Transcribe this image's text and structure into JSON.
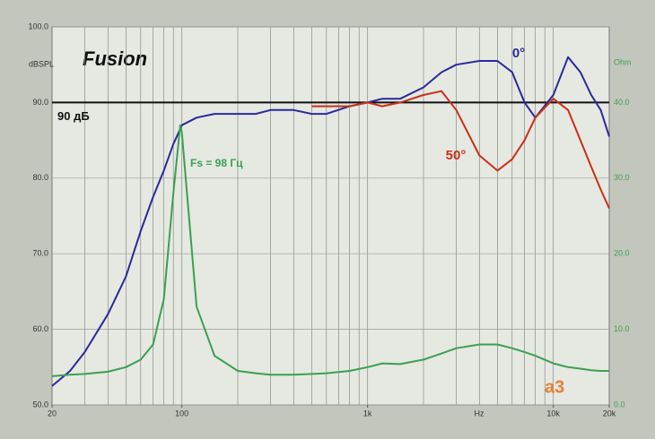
{
  "chart_data": {
    "type": "line",
    "title": "Fusion",
    "y_label": "dBSPL",
    "y2_label": "Ohm",
    "x_label": "Hz",
    "x_scale": "log",
    "grid": true,
    "xlim": [
      20,
      20000
    ],
    "ylim": [
      50,
      100
    ],
    "y2lim": [
      0,
      50
    ],
    "xticks": [
      20,
      100,
      {
        "value": 1000,
        "label": "1k"
      },
      {
        "value": 10000,
        "label": "10k"
      },
      {
        "value": 20000,
        "label": "20k"
      }
    ],
    "xgrid": [
      30,
      40,
      50,
      60,
      70,
      80,
      90,
      100,
      200,
      300,
      400,
      500,
      600,
      700,
      800,
      900,
      1000,
      2000,
      3000,
      4000,
      5000,
      6000,
      7000,
      8000,
      9000,
      10000
    ],
    "yticks": [
      {
        "value": 50,
        "label": "50.0"
      },
      {
        "value": 60,
        "label": "60.0"
      },
      {
        "value": 70,
        "label": "70.0"
      },
      {
        "value": 80,
        "label": "80.0"
      },
      {
        "value": 90,
        "label": "90.0"
      },
      {
        "value": 100,
        "label": "100.0"
      }
    ],
    "y2ticks": [
      {
        "value": 0,
        "label": "0.0"
      },
      {
        "value": 10,
        "label": "10.0"
      },
      {
        "value": 20,
        "label": "20.0"
      },
      {
        "value": 30,
        "label": "30.0"
      },
      {
        "value": 40,
        "label": "40.0"
      }
    ],
    "reference_line": {
      "value": 90,
      "label": "90 дБ",
      "color": "#111111"
    },
    "annotations": [
      "Fs = 98 Гц",
      "a3"
    ],
    "x": [
      20,
      25,
      30,
      40,
      50,
      60,
      70,
      80,
      90,
      98,
      100,
      120,
      150,
      200,
      250,
      300,
      400,
      500,
      600,
      800,
      1000,
      1200,
      1500,
      2000,
      2500,
      3000,
      4000,
      5000,
      6000,
      7000,
      8000,
      10000,
      12000,
      14000,
      16000,
      18000,
      20000
    ],
    "series": [
      {
        "name": "0°",
        "color": "#2a2a9a",
        "values": [
          52.5,
          54.5,
          57,
          62,
          67,
          73,
          77.5,
          81,
          84.5,
          86.5,
          87,
          88,
          88.5,
          88.5,
          88.5,
          89,
          89,
          88.5,
          88.5,
          89.5,
          90,
          90.5,
          90.5,
          92,
          94,
          95,
          95.5,
          95.5,
          94,
          90,
          88,
          91,
          96,
          94,
          91,
          89,
          85.5
        ]
      },
      {
        "name": "50°",
        "color": "#c83018",
        "values": [
          null,
          null,
          null,
          null,
          null,
          null,
          null,
          null,
          null,
          null,
          null,
          null,
          null,
          null,
          null,
          null,
          null,
          89.5,
          89.5,
          89.5,
          90,
          89.5,
          90,
          91,
          91.5,
          89,
          83,
          81,
          82.5,
          85,
          88,
          90.5,
          89,
          85,
          81.5,
          78.5,
          76
        ]
      },
      {
        "color": "#3aa050",
        "axis": "y2",
        "values": [
          3.8,
          4,
          4.1,
          4.4,
          5,
          6,
          8,
          14,
          28,
          37,
          36,
          13,
          6.5,
          4.5,
          4.2,
          4.0,
          4.0,
          4.1,
          4.2,
          4.5,
          5.0,
          5.5,
          5.4,
          6.0,
          6.8,
          7.5,
          8.0,
          8.0,
          7.5,
          7.0,
          6.5,
          5.5,
          5.0,
          4.8,
          4.6,
          4.5,
          4.5
        ]
      }
    ]
  }
}
